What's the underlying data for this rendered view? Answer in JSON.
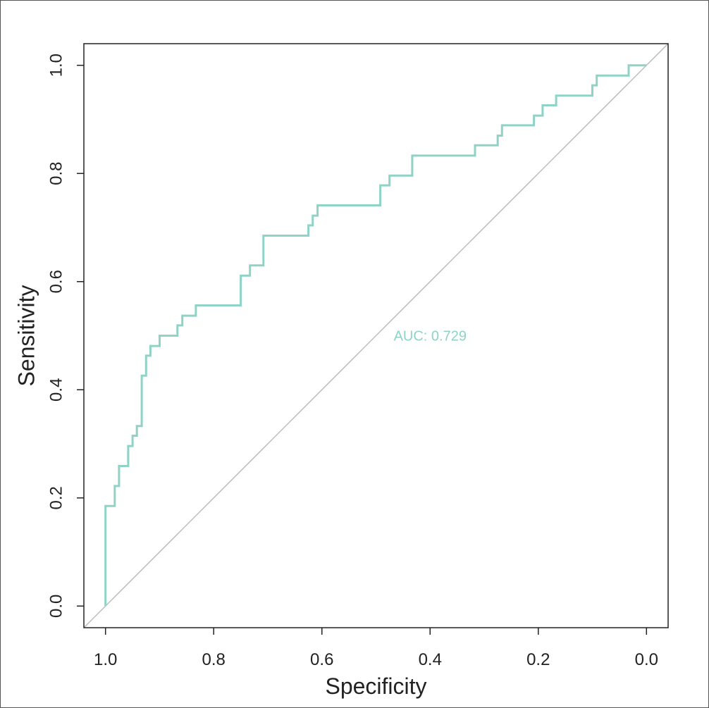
{
  "chart_data": {
    "type": "line",
    "xlabel": "Specificity",
    "ylabel": "Sensitivity",
    "xlim": [
      1.04,
      -0.04
    ],
    "ylim": [
      -0.04,
      1.04
    ],
    "x_reversed": true,
    "x_ticks": [
      "1.0",
      "0.8",
      "0.6",
      "0.4",
      "0.2",
      "0.0"
    ],
    "x_tick_values": [
      1.0,
      0.8,
      0.6,
      0.4,
      0.2,
      0.0
    ],
    "y_ticks": [
      "0.0",
      "0.2",
      "0.4",
      "0.6",
      "0.8",
      "1.0"
    ],
    "y_tick_values": [
      0.0,
      0.2,
      0.4,
      0.6,
      0.8,
      1.0
    ],
    "grid": false,
    "annotation": "AUC: 0.729",
    "colors": {
      "roc": "#8fd3c6",
      "diagonal": "#bbbbbb",
      "axes": "#222222",
      "annotation": "#8fd3c6"
    },
    "series": [
      {
        "type": "step",
        "specificity": [
          1.0,
          1.0,
          0.983,
          0.983,
          0.975,
          0.975,
          0.958,
          0.958,
          0.95,
          0.95,
          0.942,
          0.942,
          0.933,
          0.933,
          0.925,
          0.925,
          0.917,
          0.917,
          0.9,
          0.9,
          0.867,
          0.867,
          0.858,
          0.858,
          0.833,
          0.833,
          0.808,
          0.808,
          0.75,
          0.75,
          0.733,
          0.733,
          0.708,
          0.708,
          0.625,
          0.625,
          0.617,
          0.617,
          0.608,
          0.608,
          0.492,
          0.492,
          0.475,
          0.475,
          0.433,
          0.433,
          0.317,
          0.317,
          0.275,
          0.275,
          0.267,
          0.267,
          0.208,
          0.208,
          0.192,
          0.192,
          0.167,
          0.167,
          0.1,
          0.1,
          0.092,
          0.092,
          0.033,
          0.033,
          0.0
        ],
        "sensitivity": [
          0.0,
          0.185,
          0.185,
          0.222,
          0.222,
          0.259,
          0.259,
          0.296,
          0.296,
          0.315,
          0.315,
          0.333,
          0.333,
          0.426,
          0.426,
          0.463,
          0.463,
          0.481,
          0.481,
          0.5,
          0.5,
          0.519,
          0.519,
          0.537,
          0.537,
          0.556,
          0.556,
          0.556,
          0.556,
          0.611,
          0.611,
          0.63,
          0.63,
          0.685,
          0.685,
          0.704,
          0.704,
          0.722,
          0.722,
          0.741,
          0.741,
          0.778,
          0.778,
          0.796,
          0.796,
          0.833,
          0.833,
          0.852,
          0.852,
          0.87,
          0.87,
          0.889,
          0.889,
          0.907,
          0.907,
          0.926,
          0.926,
          0.944,
          0.944,
          0.963,
          0.963,
          0.981,
          0.981,
          1.0,
          1.0
        ]
      },
      {
        "type": "reference",
        "specificity": [
          1.04,
          -0.04
        ],
        "sensitivity": [
          -0.04,
          1.04
        ]
      }
    ]
  }
}
